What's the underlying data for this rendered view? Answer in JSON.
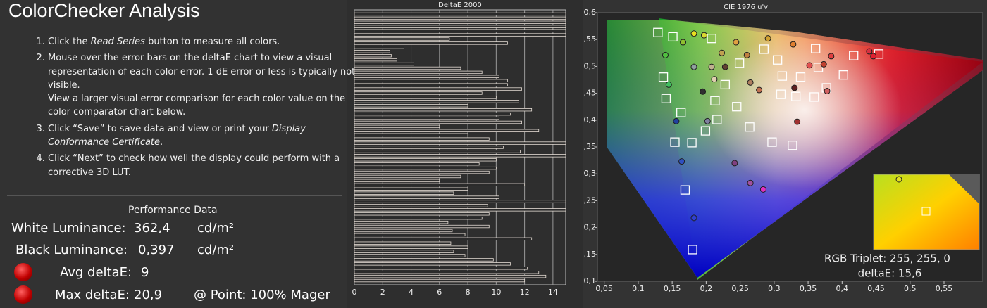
{
  "header": {
    "title": "ColorChecker Analysis"
  },
  "instructions": [
    [
      [
        "Click the ",
        {
          "text": "Read Series",
          "italic": true
        },
        " button to measure all colors."
      ]
    ],
    [
      [
        "Mouse over the error bars on the deltaE chart to view a visual representation of each color error. 1 dE error or less is typically not visible."
      ],
      [
        "View a larger visual error comparison for each color value on the color comparator chart below."
      ]
    ],
    [
      [
        "Click “Save” to save data and view or print your ",
        {
          "text": "Display Conformance Certificate",
          "italic": true
        },
        "."
      ]
    ],
    [
      [
        "Click “Next” to check how well the display could perform with a corrective 3D LUT."
      ]
    ]
  ],
  "performance": {
    "title": "Performance Data",
    "white": {
      "label": "White Luminance:",
      "value": "362,4",
      "unit": "cd/m²"
    },
    "black": {
      "label": "Black Luminance:",
      "value": "0,397",
      "unit": "cd/m²"
    },
    "avg": {
      "label": "Avg deltaE:",
      "value": "9"
    },
    "max": {
      "label": "Max deltaE:",
      "value": "20,9",
      "point": "@ Point: 100% Mager"
    }
  },
  "chart_data": [
    {
      "type": "bar",
      "orientation": "horizontal",
      "title": "DeltaE 2000",
      "color": "#e6ddd5",
      "fill": "#2b2b2b",
      "values": [
        14.9,
        14.9,
        14.9,
        14.9,
        14.9,
        14.9,
        6.7,
        10.8,
        3.5,
        2.5,
        2.6,
        3.0,
        4.2,
        7.5,
        9.0,
        10.2,
        10.8,
        10.8,
        11.8,
        9.0,
        10.0,
        11.6,
        8.0,
        12.5,
        11.0,
        10.2,
        11.8,
        6.0,
        13.0,
        8.0,
        9.5,
        14.9,
        10.5,
        11.7,
        14.9,
        10.0,
        8.8,
        10.0,
        9.5,
        7.5,
        6.0,
        12.0,
        8.0,
        7.0,
        10.2,
        14.9,
        9.4,
        14.9,
        9.5,
        9.0,
        6.6,
        9.5,
        6.9,
        7.8,
        12.5,
        6.8,
        8.0,
        7.0,
        7.8,
        9.8,
        11.0,
        12.2,
        13.0,
        13.5,
        12.0
      ],
      "xlim": [
        0,
        14.9
      ],
      "xticks": [
        0,
        2,
        4,
        6,
        8,
        10,
        12,
        14
      ],
      "grid": true
    },
    {
      "type": "scatter",
      "title": "CIE 1976 u'v'",
      "xlim": [
        0.04,
        0.607
      ],
      "ylim": [
        0.1,
        0.6
      ],
      "xticks": [
        {
          "value": 0.05,
          "label": "0,05"
        },
        {
          "value": 0.1,
          "label": "0,1"
        },
        {
          "value": 0.15,
          "label": "0,15"
        },
        {
          "value": 0.2,
          "label": "0,2"
        },
        {
          "value": 0.25,
          "label": "0,25"
        },
        {
          "value": 0.3,
          "label": "0,3"
        },
        {
          "value": 0.35,
          "label": "0,35"
        },
        {
          "value": 0.4,
          "label": "0,4"
        },
        {
          "value": 0.45,
          "label": "0,45"
        },
        {
          "value": 0.5,
          "label": "0,5"
        },
        {
          "value": 0.55,
          "label": "0,55"
        }
      ],
      "yticks": [
        {
          "value": 0.1,
          "label": "0,1"
        },
        {
          "value": 0.15,
          "label": "0,15"
        },
        {
          "value": 0.2,
          "label": "0,2"
        },
        {
          "value": 0.25,
          "label": "0,25"
        },
        {
          "value": 0.3,
          "label": "0,3"
        },
        {
          "value": 0.35,
          "label": "0,35"
        },
        {
          "value": 0.4,
          "label": "0,4"
        },
        {
          "value": 0.45,
          "label": "0,45"
        },
        {
          "value": 0.5,
          "label": "0,5"
        },
        {
          "value": 0.55,
          "label": "0,55"
        },
        {
          "value": 0.6,
          "label": "0,6"
        }
      ],
      "series": [
        {
          "marker": "square",
          "color": "#ffffff",
          "x": [
            0.129,
            0.151,
            0.361,
            0.417,
            0.454,
            0.402,
            0.365,
            0.31,
            0.332,
            0.359,
            0.245,
            0.199,
            0.216,
            0.264,
            0.297,
            0.327,
            0.154,
            0.179,
            0.169,
            0.18,
            0.141,
            0.137,
            0.228,
            0.285,
            0.208,
            0.305,
            0.339,
            0.249,
            0.377,
            0.312,
            0.163,
            0.213
          ],
          "values": [
            0.563,
            0.555,
            0.533,
            0.52,
            0.523,
            0.484,
            0.498,
            0.448,
            0.444,
            0.443,
            0.425,
            0.38,
            0.401,
            0.387,
            0.359,
            0.353,
            0.359,
            0.358,
            0.27,
            0.159,
            0.44,
            0.48,
            0.466,
            0.532,
            0.552,
            0.512,
            0.48,
            0.506,
            0.46,
            0.482,
            0.414,
            0.436
          ]
        },
        {
          "marker": "circle",
          "color": "#1e1e1e",
          "x": [
            0.182,
            0.197,
            0.328,
            0.446,
            0.44,
            0.384,
            0.373,
            0.33,
            0.334,
            0.278,
            0.265,
            0.212,
            0.195,
            0.156,
            0.164,
            0.182,
            0.242,
            0.265,
            0.284,
            0.145,
            0.14,
            0.166,
            0.244,
            0.26,
            0.208,
            0.291,
            0.352,
            0.378,
            0.202,
            0.228,
            0.182,
            0.223
          ],
          "values": [
            0.561,
            0.558,
            0.541,
            0.519,
            0.528,
            0.519,
            0.504,
            0.46,
            0.397,
            0.456,
            0.47,
            0.476,
            0.453,
            0.398,
            0.323,
            0.218,
            0.32,
            0.283,
            0.271,
            0.466,
            0.521,
            0.545,
            0.545,
            0.521,
            0.499,
            0.552,
            0.502,
            0.454,
            0.398,
            0.499,
            0.499,
            0.525
          ],
          "colors": [
            "#e8e020",
            "#d8d830",
            "#e08030",
            "#e02030",
            "#d83040",
            "#e04040",
            "#c04030",
            "#602020",
            "#a03030",
            "#c07050",
            "#b08060",
            "#e0d0b0",
            "#303030",
            "#2040a0",
            "#3050c0",
            "#3040d0",
            "#804080",
            "#a050a0",
            "#e030c0",
            "#40c060",
            "#50c040",
            "#90c030",
            "#e0a040",
            "#c08040",
            "#c0b090",
            "#d0a030",
            "#e05050",
            "#d06060",
            "#8080a0",
            "#604030",
            "#90a0a0",
            "#c0a050"
          ]
        }
      ],
      "inset": {
        "label": "RGB Triplet: 255, 255, 0",
        "delta": "deltaE: 15,6"
      }
    }
  ]
}
